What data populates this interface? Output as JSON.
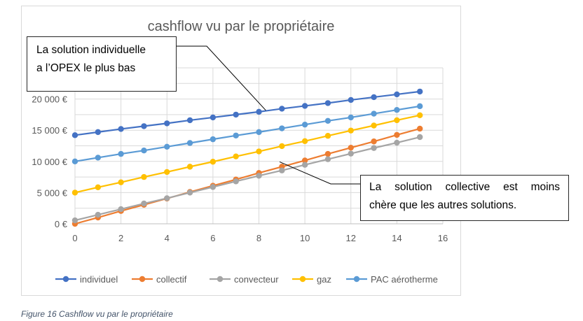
{
  "chart_data": {
    "type": "line",
    "title": "cashflow vu par le propriétaire",
    "xlabel": "",
    "ylabel": "",
    "xlim": [
      0,
      16
    ],
    "ylim": [
      0,
      25000
    ],
    "xticks": [
      0,
      2,
      4,
      6,
      8,
      10,
      12,
      14,
      16
    ],
    "yticks": [
      0,
      5000,
      10000,
      15000,
      20000
    ],
    "ytick_labels": [
      "0 €",
      "5 000 €",
      "10 000 €",
      "15 000 €",
      "20 000 €"
    ],
    "grid": true,
    "legend_position": "bottom",
    "x": [
      0,
      1,
      2,
      3,
      4,
      5,
      6,
      7,
      8,
      9,
      10,
      11,
      12,
      13,
      14,
      15
    ],
    "series": [
      {
        "name": "individuel",
        "color": "#4472c4",
        "values": [
          14200,
          14700,
          15200,
          15650,
          16100,
          16600,
          17050,
          17500,
          17950,
          18450,
          18900,
          19350,
          19850,
          20300,
          20750,
          21200
        ]
      },
      {
        "name": "collectif",
        "color": "#ed7d31",
        "values": [
          0,
          1000,
          2050,
          3050,
          4050,
          5100,
          6100,
          7100,
          8150,
          9150,
          10150,
          11200,
          12200,
          13200,
          14250,
          15250
        ]
      },
      {
        "name": "convecteur",
        "color": "#a5a5a5",
        "values": [
          550,
          1450,
          2350,
          3250,
          4100,
          5000,
          5900,
          6800,
          7700,
          8550,
          9450,
          10350,
          11250,
          12150,
          13000,
          13900
        ]
      },
      {
        "name": "gaz",
        "color": "#ffc000",
        "values": [
          5000,
          5850,
          6650,
          7500,
          8300,
          9150,
          9950,
          10800,
          11600,
          12450,
          13250,
          14100,
          14950,
          15750,
          16600,
          17400
        ]
      },
      {
        "name": "PAC aérotherme",
        "color": "#5b9bd5",
        "values": [
          10000,
          10600,
          11200,
          11750,
          12350,
          12950,
          13550,
          14150,
          14700,
          15300,
          15900,
          16500,
          17050,
          17650,
          18250,
          18850
        ]
      }
    ],
    "annotations": [
      {
        "text": "La solution individuelle a l’OPEX le plus bas",
        "target_x": 8.3,
        "target_y": 19300
      },
      {
        "text": "La solution collective est moins chère que les autres solutions.",
        "target_x": 8.9,
        "target_y": 9700
      }
    ]
  },
  "callouts": {
    "individual_line1": "La solution individuelle",
    "individual_line2": "a l’OPEX le plus bas",
    "collective_line1": "La solution collective est moins",
    "collective_line2": "chère que les autres solutions."
  },
  "caption": "Figure 16 Cashflow vu par le propriétaire"
}
